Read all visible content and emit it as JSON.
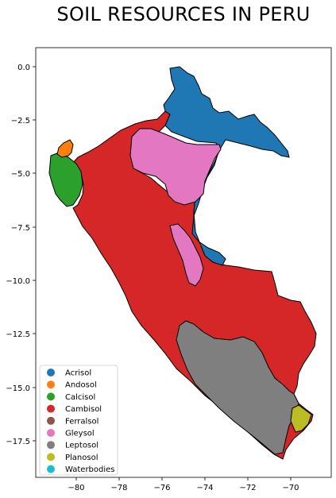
{
  "title": "SOIL RESOURCES IN PERU",
  "axes": {
    "x_ticks": [
      "−80",
      "−78",
      "−76",
      "−74",
      "−72",
      "−70"
    ],
    "y_ticks": [
      "0.0",
      "−2.5",
      "−5.0",
      "−7.5",
      "−10.0",
      "−12.5",
      "−15.0",
      "−17.5"
    ]
  },
  "legend": {
    "placement": "lower-left",
    "items": [
      {
        "label": "Acrisol",
        "color": "#1f77b4"
      },
      {
        "label": "Andosol",
        "color": "#ff7f0e"
      },
      {
        "label": "Calcisol",
        "color": "#2ca02c"
      },
      {
        "label": "Cambisol",
        "color": "#d62728"
      },
      {
        "label": "Ferralsol",
        "color": "#8c564b"
      },
      {
        "label": "Gleysol",
        "color": "#e377c2"
      },
      {
        "label": "Leptosol",
        "color": "#7f7f7f"
      },
      {
        "label": "Planosol",
        "color": "#bcbd22"
      },
      {
        "label": "Waterbodies",
        "color": "#17becf"
      }
    ]
  },
  "regions": [
    {
      "name": "Cambisol",
      "color": "#d62728"
    },
    {
      "name": "Acrisol",
      "color": "#1f77b4"
    },
    {
      "name": "Gleysol",
      "color": "#e377c2"
    },
    {
      "name": "Calcisol",
      "color": "#2ca02c"
    },
    {
      "name": "Andosol",
      "color": "#ff7f0e"
    },
    {
      "name": "Leptosol",
      "color": "#7f7f7f"
    },
    {
      "name": "Planosol",
      "color": "#bcbd22"
    }
  ]
}
